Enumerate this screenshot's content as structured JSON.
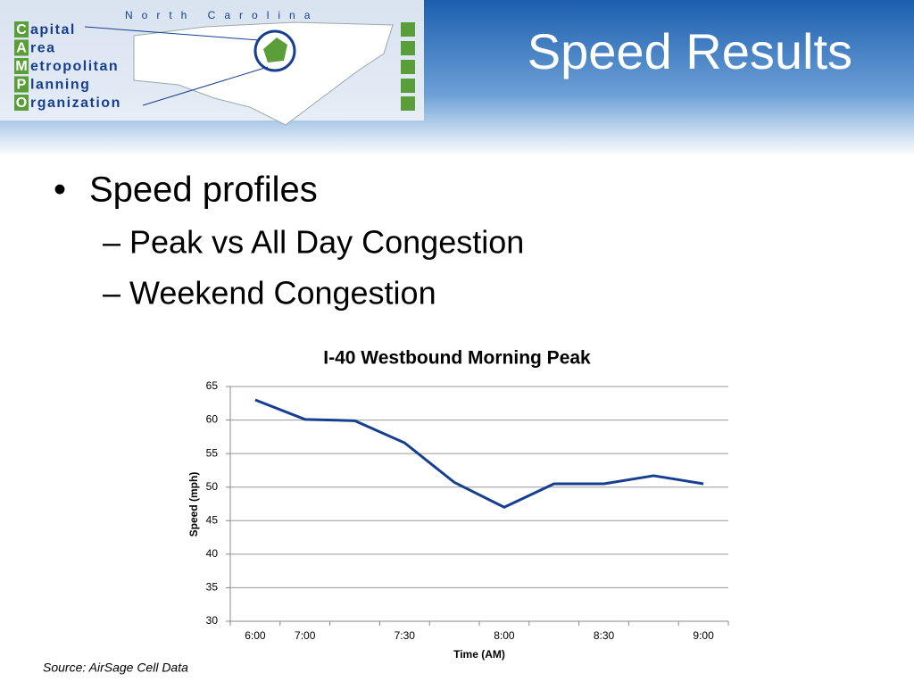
{
  "header": {
    "logo_region": "North Carolina",
    "logo_lines": [
      {
        "initial": "C",
        "rest": "apital"
      },
      {
        "initial": "A",
        "rest": "rea"
      },
      {
        "initial": "M",
        "rest": "etropolitan"
      },
      {
        "initial": "P",
        "rest": "lanning"
      },
      {
        "initial": "O",
        "rest": "rganization"
      }
    ],
    "title": "Speed Results"
  },
  "bullets": {
    "text": "Speed profiles",
    "subitems": [
      "– Peak vs All Day Congestion",
      "– Weekend Congestion"
    ]
  },
  "chart_data": {
    "type": "line",
    "title": "I-40 Westbound Morning Peak",
    "x_label": "Time (AM)",
    "y_label": "Speed (mph)",
    "categories": [
      "6:00",
      "7:00",
      null,
      "7:30",
      null,
      "8:00",
      null,
      "8:30",
      null,
      "9:00"
    ],
    "values": [
      63,
      60.1,
      59.9,
      56.6,
      50.7,
      47,
      50.5,
      50.5,
      51.7,
      50.5
    ],
    "color": "#163f8f",
    "ylim": [
      30,
      65
    ],
    "yticks": [
      30,
      35,
      40,
      45,
      50,
      55,
      60,
      65
    ],
    "grid": true
  },
  "source": "Source: AirSage Cell Data"
}
